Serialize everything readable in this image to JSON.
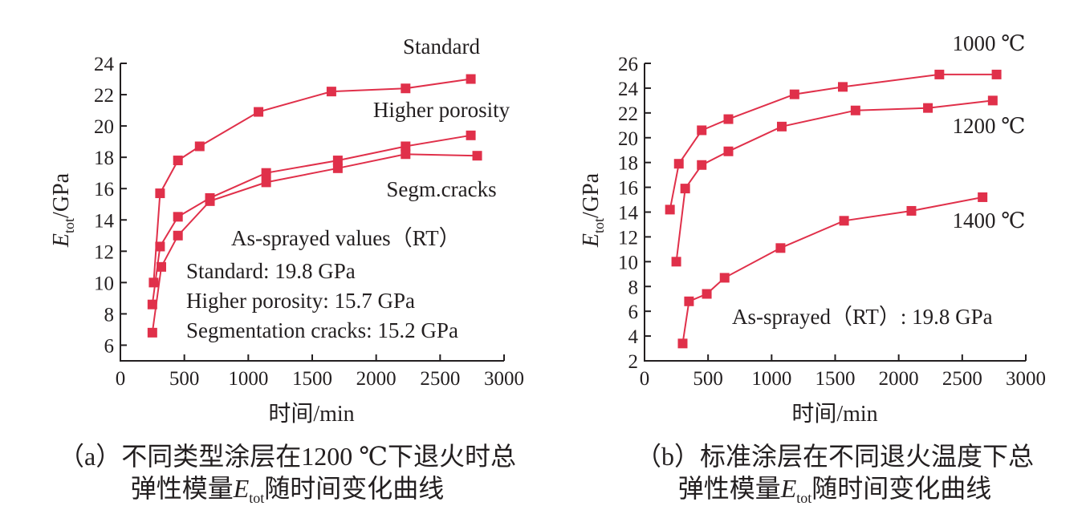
{
  "chart_data": [
    {
      "type": "line",
      "panel": "a",
      "xlabel": "时间/min",
      "ylabel": "E",
      "ylabel_sub": "tot",
      "ylabel_unit": "/GPa",
      "xlim": [
        0,
        3000
      ],
      "ylim": [
        5,
        24
      ],
      "xticks": [
        0,
        500,
        1000,
        1500,
        2000,
        2500,
        3000
      ],
      "yticks": [
        6,
        8,
        10,
        12,
        14,
        16,
        18,
        20,
        22,
        24
      ],
      "grid": false,
      "color": "#e0304a",
      "series": [
        {
          "name": "Standard",
          "x": [
            260,
            310,
            450,
            620,
            1080,
            1650,
            2230,
            2740
          ],
          "y": [
            10.0,
            15.7,
            17.8,
            18.7,
            20.9,
            22.2,
            22.4,
            23.0
          ]
        },
        {
          "name": "Higher porosity",
          "x": [
            250,
            310,
            450,
            700,
            1140,
            1700,
            2230,
            2740
          ],
          "y": [
            8.6,
            12.3,
            14.2,
            15.4,
            17.0,
            17.8,
            18.7,
            19.4
          ]
        },
        {
          "name": "Segm.cracks",
          "x": [
            250,
            320,
            450,
            700,
            1140,
            1700,
            2230,
            2790
          ],
          "y": [
            6.8,
            11.0,
            13.0,
            15.2,
            16.4,
            17.3,
            18.2,
            18.1
          ]
        }
      ],
      "annotations": [
        "As-sprayed values（RT）",
        "Standard: 19.8 GPa",
        "Higher porosity: 15.7 GPa",
        "Segmentation cracks: 15.2 GPa"
      ],
      "caption_line1": "（a）不同类型涂层在1200 ℃下退火时总",
      "caption_line2_pre": "弹性模量",
      "caption_line2_post": "随时间变化曲线"
    },
    {
      "type": "line",
      "panel": "b",
      "xlabel": "时间/min",
      "ylabel": "E",
      "ylabel_sub": "tot",
      "ylabel_unit": "/GPa",
      "xlim": [
        0,
        3000
      ],
      "ylim": [
        2,
        26
      ],
      "xticks": [
        0,
        500,
        1000,
        1500,
        2000,
        2500,
        3000
      ],
      "yticks": [
        2,
        4,
        6,
        8,
        10,
        12,
        14,
        16,
        18,
        20,
        22,
        24,
        26
      ],
      "grid": false,
      "color": "#e0304a",
      "series": [
        {
          "name": "1000 ℃",
          "x": [
            200,
            270,
            450,
            660,
            1180,
            1560,
            2320,
            2770
          ],
          "y": [
            14.2,
            17.9,
            20.6,
            21.5,
            23.5,
            24.1,
            25.1,
            25.1
          ]
        },
        {
          "name": "1200 ℃",
          "x": [
            250,
            320,
            450,
            660,
            1080,
            1660,
            2230,
            2740
          ],
          "y": [
            10.0,
            15.9,
            17.8,
            18.9,
            20.9,
            22.2,
            22.4,
            23.0
          ]
        },
        {
          "name": "1400 ℃",
          "x": [
            300,
            350,
            490,
            630,
            1070,
            1570,
            2100,
            2660
          ],
          "y": [
            3.4,
            6.8,
            7.4,
            8.7,
            11.1,
            13.3,
            14.1,
            15.2
          ]
        }
      ],
      "annotations": [
        "As-sprayed（RT）: 19.8 GPa"
      ],
      "caption_line1": "（b）标准涂层在不同退火温度下总",
      "caption_line2_pre": "弹性模量",
      "caption_line2_post": "随时间变化曲线"
    }
  ]
}
